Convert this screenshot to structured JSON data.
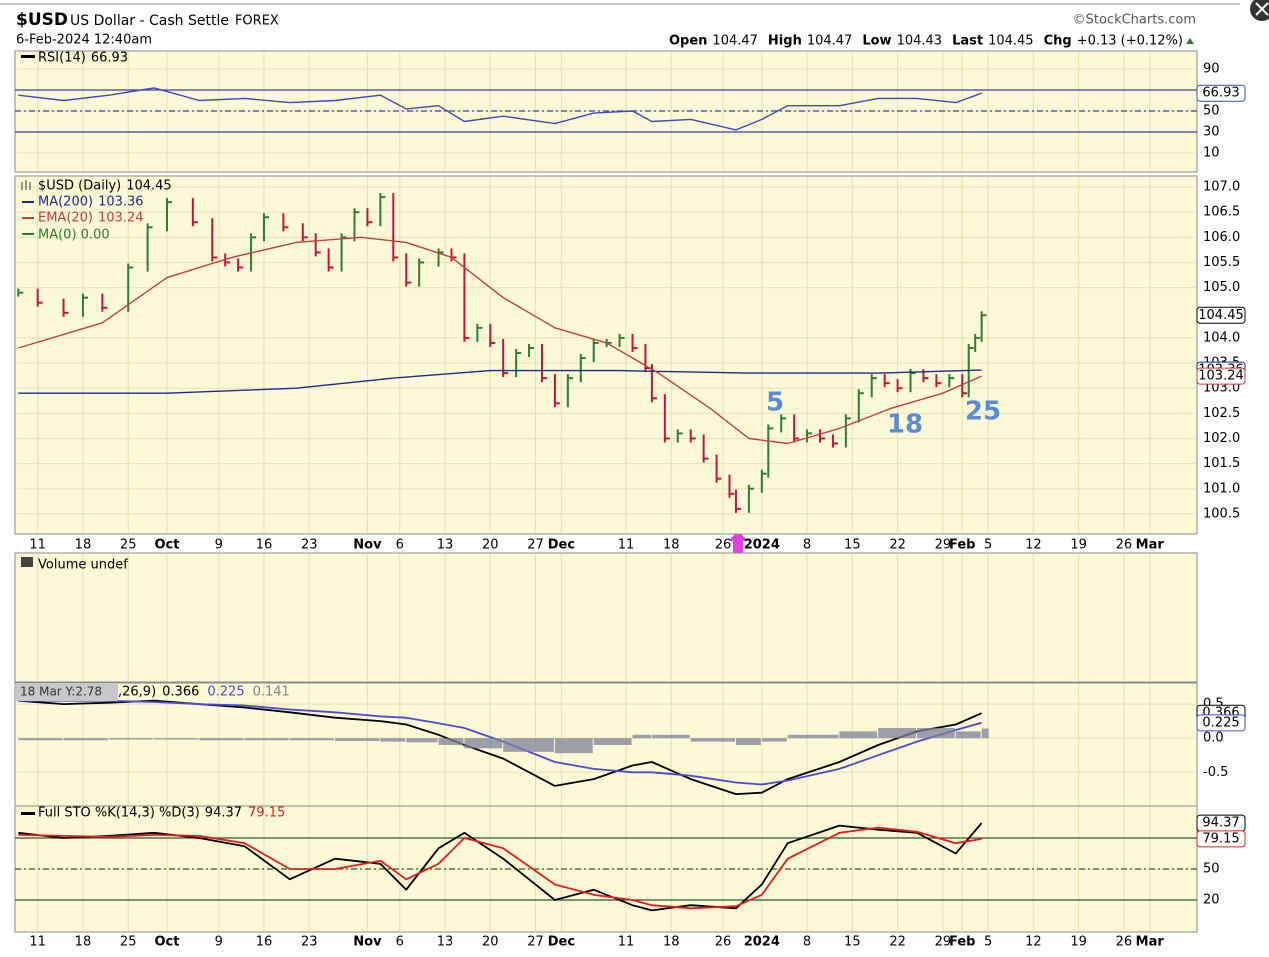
{
  "header": {
    "symbol": "$USD",
    "name": "US Dollar - Cash Settle",
    "exchange": "FOREX",
    "date": "6-Feb-2024 12:40am",
    "copyright": "©StockCharts.com",
    "quote": [
      {
        "label": "Open",
        "value": 104.47
      },
      {
        "label": "High",
        "value": 104.47
      },
      {
        "label": "Low",
        "value": 104.43
      },
      {
        "label": "Last",
        "value": 104.45
      },
      {
        "label": "Chg",
        "value": "+0.13 (+0.12%)"
      }
    ]
  },
  "chart_data": [
    {
      "type": "line",
      "title": "RSI(14)",
      "xlim": [
        -3.2,
        179
      ],
      "ylim": [
        -6.2,
        105.2
      ],
      "yticks": [
        90,
        50,
        30,
        10
      ],
      "levels": [
        70,
        50,
        30
      ],
      "series": [
        {
          "color": "#3a4bb8",
          "box": true,
          "x": [
            -3,
            4,
            11,
            18,
            25,
            32,
            39,
            46,
            53,
            57,
            62,
            66,
            72,
            80,
            86,
            92,
            95,
            101,
            108,
            112,
            116,
            124,
            130,
            136,
            142,
            146
          ],
          "values": [
            65,
            60,
            65,
            72,
            60,
            62,
            58,
            60,
            65,
            52,
            55,
            40,
            45,
            38,
            48,
            50,
            40,
            42,
            32,
            42,
            55,
            55,
            62,
            62,
            58,
            66.93
          ]
        }
      ]
    },
    {
      "type": "price",
      "xlim": [
        -3.2,
        179
      ],
      "ylim": [
        100.14,
        107.18
      ],
      "yticks": [
        100.5,
        {
          "value": 101,
          "label": "101.0"
        },
        101.5,
        {
          "value": 102,
          "label": "102.0"
        },
        102.5,
        {
          "value": 103,
          "label": "103.0"
        },
        103.5,
        {
          "value": 104,
          "label": "104.0"
        },
        {
          "value": 105,
          "label": "105.0"
        },
        105.5,
        {
          "value": 106,
          "label": "106.0"
        },
        106.5,
        {
          "value": 107,
          "label": "107.0"
        }
      ],
      "xticks": [
        {
          "value": 0,
          "label": "11"
        },
        {
          "value": 7,
          "label": "18"
        },
        {
          "value": 14,
          "label": "25"
        },
        {
          "value": 20,
          "label": "Oct"
        },
        {
          "value": 28,
          "label": "9"
        },
        {
          "value": 35,
          "label": "16"
        },
        {
          "value": 42,
          "label": "23"
        },
        {
          "value": 51,
          "label": "Nov"
        },
        {
          "value": 56,
          "label": "6"
        },
        {
          "value": 63,
          "label": "13"
        },
        {
          "value": 70,
          "label": "20"
        },
        {
          "value": 77,
          "label": "27"
        },
        {
          "value": 81,
          "label": "Dec"
        },
        {
          "value": 91,
          "label": "11"
        },
        {
          "value": 98,
          "label": "18"
        },
        {
          "value": 106,
          "label": "26"
        },
        {
          "value": 112,
          "label": "2024"
        },
        {
          "value": 119,
          "label": "8"
        },
        {
          "value": 126,
          "label": "15"
        },
        {
          "value": 133,
          "label": "22"
        },
        {
          "value": 140,
          "label": "29"
        },
        {
          "value": 143,
          "label": "Feb"
        },
        {
          "value": 147,
          "label": "5"
        },
        {
          "value": 154,
          "label": "12"
        },
        {
          "value": 161,
          "label": "19"
        },
        {
          "value": 168,
          "label": "26"
        },
        {
          "value": 172,
          "label": "Mar"
        }
      ],
      "series": [
        {
          "name": "$USD (Daily)",
          "up_color": "#2e7d32",
          "down_color": "#c0163a",
          "color": "#000000",
          "box": true,
          "x": [
            -3,
            0,
            4,
            7,
            10,
            14,
            17,
            20,
            24,
            27,
            29,
            31,
            33,
            35,
            38,
            41,
            43,
            45,
            47,
            49,
            51,
            53,
            55,
            57,
            59,
            62,
            64,
            66,
            68,
            70,
            72,
            74,
            76,
            78,
            80,
            82,
            84,
            86,
            88,
            90,
            92,
            94,
            95,
            97,
            99,
            101,
            103,
            105,
            107,
            108,
            110,
            112,
            113,
            115,
            117,
            119,
            121,
            123,
            125,
            127,
            129,
            131,
            133,
            135,
            137,
            139,
            141,
            143,
            144,
            145,
            146
          ],
          "values": [
            104.9,
            104.7,
            104.5,
            104.8,
            104.6,
            105.4,
            106.2,
            106.7,
            106.3,
            105.6,
            105.5,
            105.4,
            106.0,
            106.4,
            106.2,
            106.0,
            105.7,
            105.4,
            106.0,
            106.5,
            106.3,
            106.8,
            105.6,
            105.1,
            105.5,
            105.7,
            105.6,
            104.0,
            104.2,
            103.9,
            103.3,
            103.7,
            103.8,
            103.2,
            102.7,
            103.2,
            103.6,
            103.9,
            103.9,
            104.0,
            103.8,
            103.4,
            102.8,
            102.0,
            102.1,
            102.0,
            101.6,
            101.2,
            100.9,
            100.6,
            101.0,
            101.3,
            102.2,
            102.4,
            102.0,
            102.1,
            102.0,
            101.9,
            102.4,
            102.9,
            103.2,
            103.1,
            103.0,
            103.3,
            103.2,
            103.1,
            103.2,
            102.9,
            103.8,
            104.0,
            104.45
          ]
        },
        {
          "name": "MA(200)",
          "color": "#1f2a8a",
          "box": true,
          "x": [
            -3,
            20,
            40,
            55,
            70,
            90,
            110,
            130,
            146
          ],
          "values": [
            102.9,
            102.9,
            103.0,
            103.2,
            103.35,
            103.35,
            103.3,
            103.3,
            103.36
          ]
        },
        {
          "name": "EMA(20)",
          "color": "#c04040",
          "box": true,
          "x": [
            -3,
            10,
            20,
            30,
            40,
            50,
            57,
            64,
            72,
            80,
            88,
            96,
            104,
            110,
            116,
            124,
            132,
            140,
            146
          ],
          "values": [
            103.8,
            104.3,
            105.2,
            105.6,
            105.9,
            106.0,
            105.9,
            105.6,
            104.8,
            104.2,
            103.9,
            103.3,
            102.6,
            102.0,
            101.9,
            102.2,
            102.6,
            102.9,
            103.24
          ]
        }
      ],
      "extra_legend": "MA(0) 0.00",
      "annotations": [
        "5",
        "18",
        "25"
      ]
    },
    {
      "type": "volume",
      "title": "Volume undef",
      "xlim": [
        -3.2,
        179
      ]
    },
    {
      "type": "macd",
      "title": ",26,9)",
      "overlay": "18 Mar Y:2.78",
      "xlim": [
        -3.2,
        179
      ],
      "ylim": [
        -0.98,
        0.78
      ],
      "yticks": [
        0.5,
        {
          "value": 0,
          "label": "0.0"
        },
        -0.5
      ],
      "series": [
        {
          "color": "#000000",
          "box": true,
          "x": [
            -3,
            4,
            11,
            18,
            25,
            32,
            39,
            46,
            53,
            57,
            62,
            66,
            72,
            80,
            86,
            92,
            95,
            101,
            108,
            112,
            116,
            124,
            130,
            136,
            142,
            146
          ],
          "values": [
            0.55,
            0.5,
            0.52,
            0.55,
            0.5,
            0.45,
            0.38,
            0.3,
            0.25,
            0.2,
            0.05,
            -0.1,
            -0.3,
            -0.7,
            -0.6,
            -0.4,
            -0.35,
            -0.6,
            -0.82,
            -0.8,
            -0.6,
            -0.35,
            -0.1,
            0.1,
            0.2,
            0.366
          ]
        },
        {
          "color": "#4a4ad0",
          "box": true,
          "x": [
            -3,
            4,
            11,
            18,
            25,
            32,
            39,
            46,
            53,
            57,
            62,
            66,
            72,
            80,
            86,
            92,
            95,
            101,
            108,
            112,
            116,
            124,
            130,
            136,
            142,
            146
          ],
          "values": [
            0.55,
            0.55,
            0.55,
            0.53,
            0.5,
            0.48,
            0.42,
            0.38,
            0.32,
            0.3,
            0.22,
            0.15,
            -0.05,
            -0.35,
            -0.45,
            -0.5,
            -0.5,
            -0.55,
            -0.65,
            -0.68,
            -0.62,
            -0.45,
            -0.25,
            -0.05,
            0.12,
            0.225
          ]
        },
        {
          "color": "#7f7f9a",
          "kind": "histogram",
          "x": [
            -3,
            4,
            11,
            18,
            25,
            32,
            39,
            46,
            53,
            57,
            62,
            66,
            72,
            80,
            86,
            92,
            95,
            101,
            108,
            112,
            116,
            124,
            130,
            136,
            142,
            146
          ],
          "values": [
            -0.03,
            -0.03,
            -0.02,
            -0.02,
            -0.03,
            -0.03,
            -0.03,
            -0.04,
            -0.05,
            -0.06,
            -0.1,
            -0.15,
            -0.2,
            -0.22,
            -0.1,
            0.05,
            0.05,
            -0.05,
            -0.1,
            -0.05,
            0.05,
            0.1,
            0.15,
            0.15,
            0.1,
            0.141
          ]
        }
      ]
    },
    {
      "type": "line",
      "title": "Full STO %K(14,3) %D(3)",
      "xlim": [
        -3.2,
        179
      ],
      "ylim": [
        -9,
        109
      ],
      "yticks": [
        50,
        20
      ],
      "levels": [
        80,
        50,
        20
      ],
      "xticks": [
        {
          "value": 0,
          "label": "11"
        },
        {
          "value": 7,
          "label": "18"
        },
        {
          "value": 14,
          "label": "25"
        },
        {
          "value": 20,
          "label": "Oct"
        },
        {
          "value": 28,
          "label": "9"
        },
        {
          "value": 35,
          "label": "16"
        },
        {
          "value": 42,
          "label": "23"
        },
        {
          "value": 51,
          "label": "Nov"
        },
        {
          "value": 56,
          "label": "6"
        },
        {
          "value": 63,
          "label": "13"
        },
        {
          "value": 70,
          "label": "20"
        },
        {
          "value": 77,
          "label": "27"
        },
        {
          "value": 81,
          "label": "Dec"
        },
        {
          "value": 91,
          "label": "11"
        },
        {
          "value": 98,
          "label": "18"
        },
        {
          "value": 106,
          "label": "26"
        },
        {
          "value": 112,
          "label": "2024"
        },
        {
          "value": 119,
          "label": "8"
        },
        {
          "value": 126,
          "label": "15"
        },
        {
          "value": 133,
          "label": "22"
        },
        {
          "value": 140,
          "label": "29"
        },
        {
          "value": 143,
          "label": "Feb"
        },
        {
          "value": 147,
          "label": "5"
        },
        {
          "value": 154,
          "label": "12"
        },
        {
          "value": 161,
          "label": "19"
        },
        {
          "value": 168,
          "label": "26"
        },
        {
          "value": 172,
          "label": "Mar"
        }
      ],
      "series": [
        {
          "color": "#000000",
          "box": true,
          "x": [
            -3,
            4,
            11,
            18,
            25,
            32,
            39,
            46,
            53,
            57,
            62,
            66,
            72,
            80,
            86,
            92,
            95,
            101,
            108,
            112,
            116,
            124,
            130,
            136,
            142,
            146
          ],
          "values": [
            85,
            80,
            82,
            85,
            80,
            72,
            40,
            60,
            55,
            30,
            70,
            85,
            60,
            20,
            30,
            15,
            10,
            15,
            12,
            35,
            75,
            92,
            88,
            85,
            65,
            94.37
          ]
        },
        {
          "color": "#e02020",
          "box": true,
          "x": [
            -3,
            4,
            11,
            18,
            25,
            32,
            39,
            46,
            53,
            57,
            62,
            66,
            72,
            80,
            86,
            92,
            95,
            101,
            108,
            112,
            116,
            124,
            130,
            136,
            142,
            146
          ],
          "values": [
            83,
            82,
            81,
            83,
            82,
            75,
            50,
            50,
            58,
            40,
            55,
            80,
            70,
            35,
            25,
            20,
            15,
            12,
            14,
            25,
            60,
            85,
            90,
            86,
            75,
            79.15
          ]
        }
      ]
    }
  ]
}
